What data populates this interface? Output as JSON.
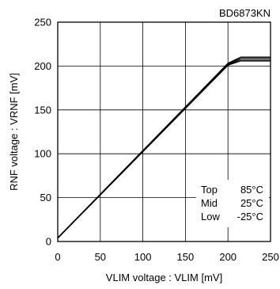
{
  "chart_data": {
    "type": "line",
    "title": "BD6873KN",
    "xlabel": "VLIM voltage : VLIM [mV]",
    "ylabel": "RNF voltage : VRNF [mV]",
    "xlim": [
      0,
      250
    ],
    "ylim": [
      0,
      250
    ],
    "xticks": [
      "0",
      "50",
      "100",
      "150",
      "200",
      "250"
    ],
    "yticks": [
      "0",
      "50",
      "100",
      "150",
      "200",
      "250"
    ],
    "grid": true,
    "series": [
      {
        "name": "Top",
        "legend_value": "85°C",
        "x": [
          0,
          200,
          215,
          250
        ],
        "y": [
          4,
          203,
          210,
          210
        ]
      },
      {
        "name": "Mid",
        "legend_value": "25°C",
        "x": [
          0,
          200,
          215,
          250
        ],
        "y": [
          4,
          202,
          208,
          208
        ]
      },
      {
        "name": "Low",
        "legend_value": "-25°C",
        "x": [
          0,
          200,
          215,
          250
        ],
        "y": [
          4,
          201,
          206,
          206
        ]
      }
    ]
  }
}
